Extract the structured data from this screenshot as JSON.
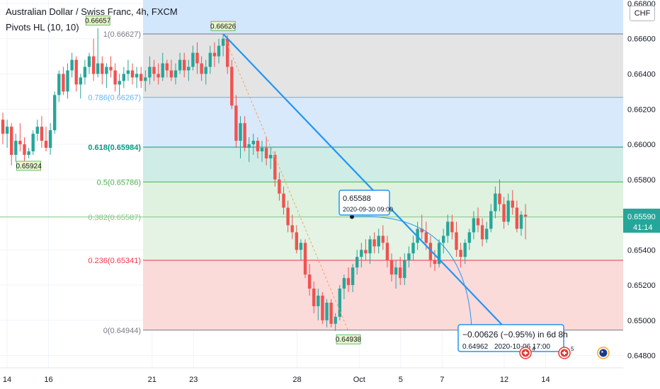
{
  "header": {
    "title": "Australian Dollar / Swiss Franc, 4h, FXCM",
    "indicator": "Pivots HL (10, 10)",
    "currency_button": "CHF"
  },
  "colors": {
    "up": "#26a69a",
    "down": "#ef5350",
    "trendline": "#2196f3",
    "fib_1": "#787b86",
    "fib_786": "#64b5f6",
    "fib_618": "#089981",
    "fib_5": "#4caf50",
    "fib_382": "#81c784",
    "fib_236": "#f23645",
    "fib_0": "#787b86"
  },
  "chart_data": {
    "type": "candlestick",
    "symbol": "AUDCHF",
    "timeframe": "4h",
    "y_axis": {
      "ylim": [
        0.6473,
        0.6682
      ],
      "ticks": [
        "0.66800",
        "0.66600",
        "0.66400",
        "0.66200",
        "0.66000",
        "0.65800",
        "0.65400",
        "0.65200",
        "0.65000",
        "0.64800"
      ],
      "last_price": "0.65590",
      "countdown": "41:14"
    },
    "x_axis": {
      "ticks": [
        {
          "label": "14",
          "day": 14
        },
        {
          "label": "16",
          "day": 16
        },
        {
          "label": "21",
          "day": 21
        },
        {
          "label": "23",
          "day": 23
        },
        {
          "label": "28",
          "day": 28
        },
        {
          "label": "Oct",
          "day": 31
        },
        {
          "label": "5",
          "day": 33
        },
        {
          "label": "7",
          "day": 35
        },
        {
          "label": "12",
          "day": 38
        },
        {
          "label": "14",
          "day": 40
        }
      ]
    },
    "fib_levels": [
      {
        "ratio": "1",
        "price": 0.66627,
        "label": "1(0.66627)",
        "color_key": "fib_1"
      },
      {
        "ratio": "0.786",
        "price": 0.66267,
        "label": "0.786(0.66267)",
        "color_key": "fib_786"
      },
      {
        "ratio": "0.618",
        "price": 0.65984,
        "label": "0.618(0.65984)",
        "color_key": "fib_618"
      },
      {
        "ratio": "0.5",
        "price": 0.65786,
        "label": "0.5(0.65786)",
        "color_key": "fib_5"
      },
      {
        "ratio": "0.382",
        "price": 0.65587,
        "label": "0.382(0.65587)",
        "color_key": "fib_382"
      },
      {
        "ratio": "0.236",
        "price": 0.65341,
        "label": "0.236(0.65341)",
        "color_key": "fib_236"
      },
      {
        "ratio": "0",
        "price": 0.64944,
        "label": "0(0.64944)",
        "color_key": "fib_0"
      }
    ],
    "pivots": [
      {
        "label": "0.66657",
        "price": 0.66657,
        "bar": 22,
        "type": "high"
      },
      {
        "label": "0.66626",
        "price": 0.66626,
        "bar": 51,
        "type": "high"
      },
      {
        "label": "0.65924",
        "price": 0.65924,
        "bar": 6,
        "type": "low"
      },
      {
        "label": "0.64938",
        "price": 0.64938,
        "bar": 80,
        "type": "low"
      }
    ],
    "projection": {
      "price_label": "0.65588",
      "time_label": "2020-09-30 09:00",
      "target_change": "−0.00626 (−0.95%) in 6d 8h",
      "target_price": "0.64962",
      "target_time": "2020-10-06  17:00"
    },
    "event_icons": [
      {
        "count": "4",
        "type": "flag-ch",
        "bar": 121
      },
      {
        "count": "5",
        "type": "flag-ch",
        "bar": 130
      },
      {
        "count": "",
        "type": "flag-au",
        "bar": 139
      },
      {
        "count": "",
        "type": "flag-au",
        "bar": 157
      },
      {
        "count": "",
        "type": "flag-au",
        "bar": 159
      }
    ],
    "candles": [
      [
        0.6614,
        0.6618,
        0.66,
        0.6606
      ],
      [
        0.6606,
        0.6614,
        0.6598,
        0.661
      ],
      [
        0.661,
        0.6612,
        0.6588,
        0.6594
      ],
      [
        0.6594,
        0.6606,
        0.659,
        0.6602
      ],
      [
        0.6602,
        0.6612,
        0.6596,
        0.66
      ],
      [
        0.66,
        0.6604,
        0.659,
        0.6594
      ],
      [
        0.6594,
        0.6598,
        0.6592,
        0.6596
      ],
      [
        0.6596,
        0.6608,
        0.6594,
        0.6606
      ],
      [
        0.6606,
        0.6614,
        0.6602,
        0.661
      ],
      [
        0.661,
        0.6616,
        0.6598,
        0.6602
      ],
      [
        0.6602,
        0.661,
        0.6596,
        0.6598
      ],
      [
        0.6598,
        0.6612,
        0.6594,
        0.6608
      ],
      [
        0.6608,
        0.663,
        0.6606,
        0.6628
      ],
      [
        0.6628,
        0.6642,
        0.6624,
        0.664
      ],
      [
        0.664,
        0.6644,
        0.6628,
        0.663
      ],
      [
        0.663,
        0.6646,
        0.6626,
        0.6642
      ],
      [
        0.6642,
        0.6652,
        0.6638,
        0.6648
      ],
      [
        0.6648,
        0.665,
        0.663,
        0.6634
      ],
      [
        0.6634,
        0.664,
        0.6626,
        0.6638
      ],
      [
        0.6638,
        0.6648,
        0.6634,
        0.6644
      ],
      [
        0.6644,
        0.6652,
        0.664,
        0.665
      ],
      [
        0.665,
        0.666,
        0.6636,
        0.664
      ],
      [
        0.664,
        0.6666,
        0.6638,
        0.6646
      ],
      [
        0.6646,
        0.665,
        0.6634,
        0.664
      ],
      [
        0.664,
        0.6646,
        0.6632,
        0.6644
      ],
      [
        0.6644,
        0.665,
        0.6638,
        0.6642
      ],
      [
        0.6642,
        0.6646,
        0.663,
        0.6634
      ],
      [
        0.6634,
        0.664,
        0.6628,
        0.6636
      ],
      [
        0.6636,
        0.6644,
        0.6632,
        0.664
      ],
      [
        0.664,
        0.6648,
        0.6636,
        0.6642
      ],
      [
        0.6642,
        0.6646,
        0.6634,
        0.6638
      ],
      [
        0.6638,
        0.6644,
        0.6632,
        0.664
      ],
      [
        0.664,
        0.6644,
        0.6632,
        0.6636
      ],
      [
        0.6636,
        0.6642,
        0.663,
        0.6638
      ],
      [
        0.6638,
        0.665,
        0.6634,
        0.6644
      ],
      [
        0.6644,
        0.6648,
        0.6636,
        0.664
      ],
      [
        0.664,
        0.6646,
        0.6634,
        0.6638
      ],
      [
        0.6638,
        0.6652,
        0.6636,
        0.6646
      ],
      [
        0.6646,
        0.6648,
        0.6638,
        0.6642
      ],
      [
        0.6642,
        0.6648,
        0.6636,
        0.6638
      ],
      [
        0.6638,
        0.6646,
        0.6634,
        0.6642
      ],
      [
        0.6642,
        0.6652,
        0.664,
        0.6648
      ],
      [
        0.6648,
        0.6652,
        0.6638,
        0.6642
      ],
      [
        0.6642,
        0.6648,
        0.6636,
        0.6644
      ],
      [
        0.6644,
        0.6656,
        0.6642,
        0.6652
      ],
      [
        0.6652,
        0.6658,
        0.664,
        0.6646
      ],
      [
        0.6646,
        0.665,
        0.6636,
        0.664
      ],
      [
        0.664,
        0.6648,
        0.6634,
        0.6644
      ],
      [
        0.6644,
        0.6656,
        0.664,
        0.6652
      ],
      [
        0.6652,
        0.6658,
        0.6644,
        0.665
      ],
      [
        0.665,
        0.666,
        0.6646,
        0.6656
      ],
      [
        0.6656,
        0.6663,
        0.665,
        0.666
      ],
      [
        0.666,
        0.6662,
        0.664,
        0.6644
      ],
      [
        0.6644,
        0.6648,
        0.662,
        0.6622
      ],
      [
        0.6622,
        0.6628,
        0.6598,
        0.6602
      ],
      [
        0.6602,
        0.6616,
        0.6592,
        0.6612
      ],
      [
        0.6612,
        0.6616,
        0.6596,
        0.6598
      ],
      [
        0.6598,
        0.6604,
        0.659,
        0.66
      ],
      [
        0.66,
        0.6606,
        0.6594,
        0.6602
      ],
      [
        0.6602,
        0.6604,
        0.6592,
        0.6596
      ],
      [
        0.6596,
        0.6602,
        0.659,
        0.6598
      ],
      [
        0.6598,
        0.6604,
        0.6588,
        0.6592
      ],
      [
        0.6592,
        0.6598,
        0.6586,
        0.6594
      ],
      [
        0.6594,
        0.6596,
        0.6576,
        0.658
      ],
      [
        0.658,
        0.6584,
        0.6568,
        0.6572
      ],
      [
        0.6572,
        0.6576,
        0.656,
        0.6564
      ],
      [
        0.6564,
        0.6568,
        0.655,
        0.6554
      ],
      [
        0.6554,
        0.656,
        0.6546,
        0.655
      ],
      [
        0.655,
        0.6554,
        0.6538,
        0.654
      ],
      [
        0.654,
        0.6546,
        0.6534,
        0.6544
      ],
      [
        0.6544,
        0.6546,
        0.6524,
        0.6526
      ],
      [
        0.6526,
        0.6532,
        0.6514,
        0.6518
      ],
      [
        0.6518,
        0.6522,
        0.6504,
        0.6508
      ],
      [
        0.6508,
        0.6518,
        0.65,
        0.6514
      ],
      [
        0.6514,
        0.6516,
        0.6498,
        0.65
      ],
      [
        0.65,
        0.6512,
        0.6496,
        0.651
      ],
      [
        0.651,
        0.6512,
        0.6496,
        0.6498
      ],
      [
        0.6498,
        0.6504,
        0.6494,
        0.6502
      ],
      [
        0.6502,
        0.652,
        0.65,
        0.6518
      ],
      [
        0.6518,
        0.6526,
        0.6512,
        0.6524
      ],
      [
        0.6524,
        0.653,
        0.6516,
        0.652
      ],
      [
        0.652,
        0.6532,
        0.6516,
        0.653
      ],
      [
        0.653,
        0.654,
        0.6526,
        0.6536
      ],
      [
        0.6536,
        0.6544,
        0.653,
        0.654
      ],
      [
        0.654,
        0.6546,
        0.6534,
        0.6538
      ],
      [
        0.6538,
        0.6548,
        0.6532,
        0.6546
      ],
      [
        0.6546,
        0.655,
        0.6538,
        0.6542
      ],
      [
        0.6542,
        0.6552,
        0.6538,
        0.6548
      ],
      [
        0.6548,
        0.6554,
        0.654,
        0.6544
      ],
      [
        0.6544,
        0.6548,
        0.653,
        0.6534
      ],
      [
        0.6534,
        0.6538,
        0.6522,
        0.6526
      ],
      [
        0.6526,
        0.6534,
        0.6518,
        0.653
      ],
      [
        0.653,
        0.6536,
        0.652,
        0.6524
      ],
      [
        0.6524,
        0.6538,
        0.652,
        0.6534
      ],
      [
        0.6534,
        0.6542,
        0.653,
        0.6538
      ],
      [
        0.6538,
        0.6548,
        0.6534,
        0.6544
      ],
      [
        0.6544,
        0.6556,
        0.654,
        0.6552
      ],
      [
        0.6552,
        0.656,
        0.6546,
        0.655
      ],
      [
        0.655,
        0.6556,
        0.654,
        0.6544
      ],
      [
        0.6544,
        0.6548,
        0.653,
        0.6534
      ],
      [
        0.6534,
        0.654,
        0.6528,
        0.6532
      ],
      [
        0.6532,
        0.6546,
        0.653,
        0.6544
      ],
      [
        0.6544,
        0.6552,
        0.6538,
        0.6548
      ],
      [
        0.6548,
        0.656,
        0.6544,
        0.6556
      ],
      [
        0.6556,
        0.656,
        0.6546,
        0.655
      ],
      [
        0.655,
        0.6556,
        0.6536,
        0.654
      ],
      [
        0.654,
        0.6544,
        0.653,
        0.6536
      ],
      [
        0.6536,
        0.6546,
        0.6532,
        0.6544
      ],
      [
        0.6544,
        0.6552,
        0.654,
        0.655
      ],
      [
        0.655,
        0.6562,
        0.6546,
        0.6558
      ],
      [
        0.6558,
        0.6564,
        0.655,
        0.6554
      ],
      [
        0.6554,
        0.6558,
        0.6542,
        0.6546
      ],
      [
        0.6546,
        0.6556,
        0.6544,
        0.6552
      ],
      [
        0.6552,
        0.6566,
        0.655,
        0.6562
      ],
      [
        0.6562,
        0.6576,
        0.6558,
        0.6572
      ],
      [
        0.6572,
        0.658,
        0.6562,
        0.6566
      ],
      [
        0.6566,
        0.657,
        0.6552,
        0.6556
      ],
      [
        0.6556,
        0.6572,
        0.6554,
        0.6568
      ],
      [
        0.6568,
        0.6574,
        0.656,
        0.6564
      ],
      [
        0.6564,
        0.6568,
        0.655,
        0.6552
      ],
      [
        0.6552,
        0.6562,
        0.6548,
        0.656
      ],
      [
        0.656,
        0.6566,
        0.6546,
        0.6559
      ]
    ]
  }
}
